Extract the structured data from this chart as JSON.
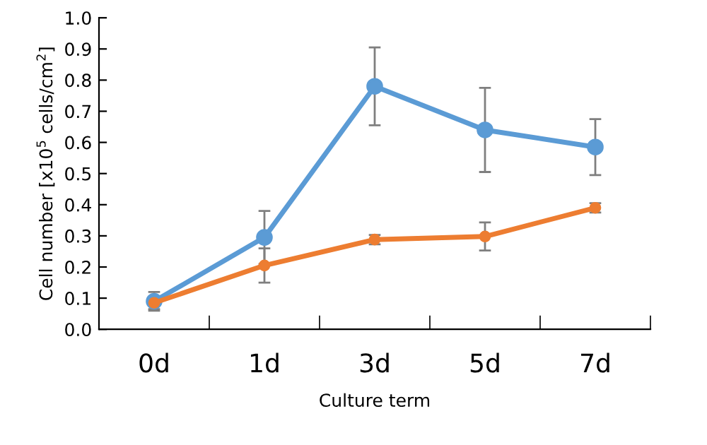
{
  "chart_data": {
    "type": "line",
    "xlabel": "Culture term",
    "ylabel": "Cell number [x10$^{5}$ cells/cm$^{2}$]",
    "categories": [
      "0d",
      "1d",
      "3d",
      "5d",
      "7d"
    ],
    "series": [
      {
        "color": "#5b9bd5",
        "values": [
          0.09,
          0.295,
          0.78,
          0.64,
          0.585
        ],
        "errors": [
          0.03,
          0.085,
          0.125,
          0.135,
          0.09
        ]
      },
      {
        "color": "#ed7d31",
        "values": [
          0.085,
          0.205,
          0.288,
          0.298,
          0.39
        ],
        "errors": [
          0.02,
          0.055,
          0.015,
          0.045,
          0.015
        ]
      }
    ],
    "ylim": [
      0,
      1.0
    ],
    "yticks": [
      {
        "value": 0,
        "label": "0.0"
      },
      0.1,
      0.2,
      0.3,
      0.4,
      0.5,
      0.6,
      0.7,
      0.8,
      0.9,
      {
        "value": 1.0,
        "label": "1.0"
      }
    ],
    "marker": "circle",
    "line_style": "solid",
    "grid": false,
    "legend": false
  }
}
